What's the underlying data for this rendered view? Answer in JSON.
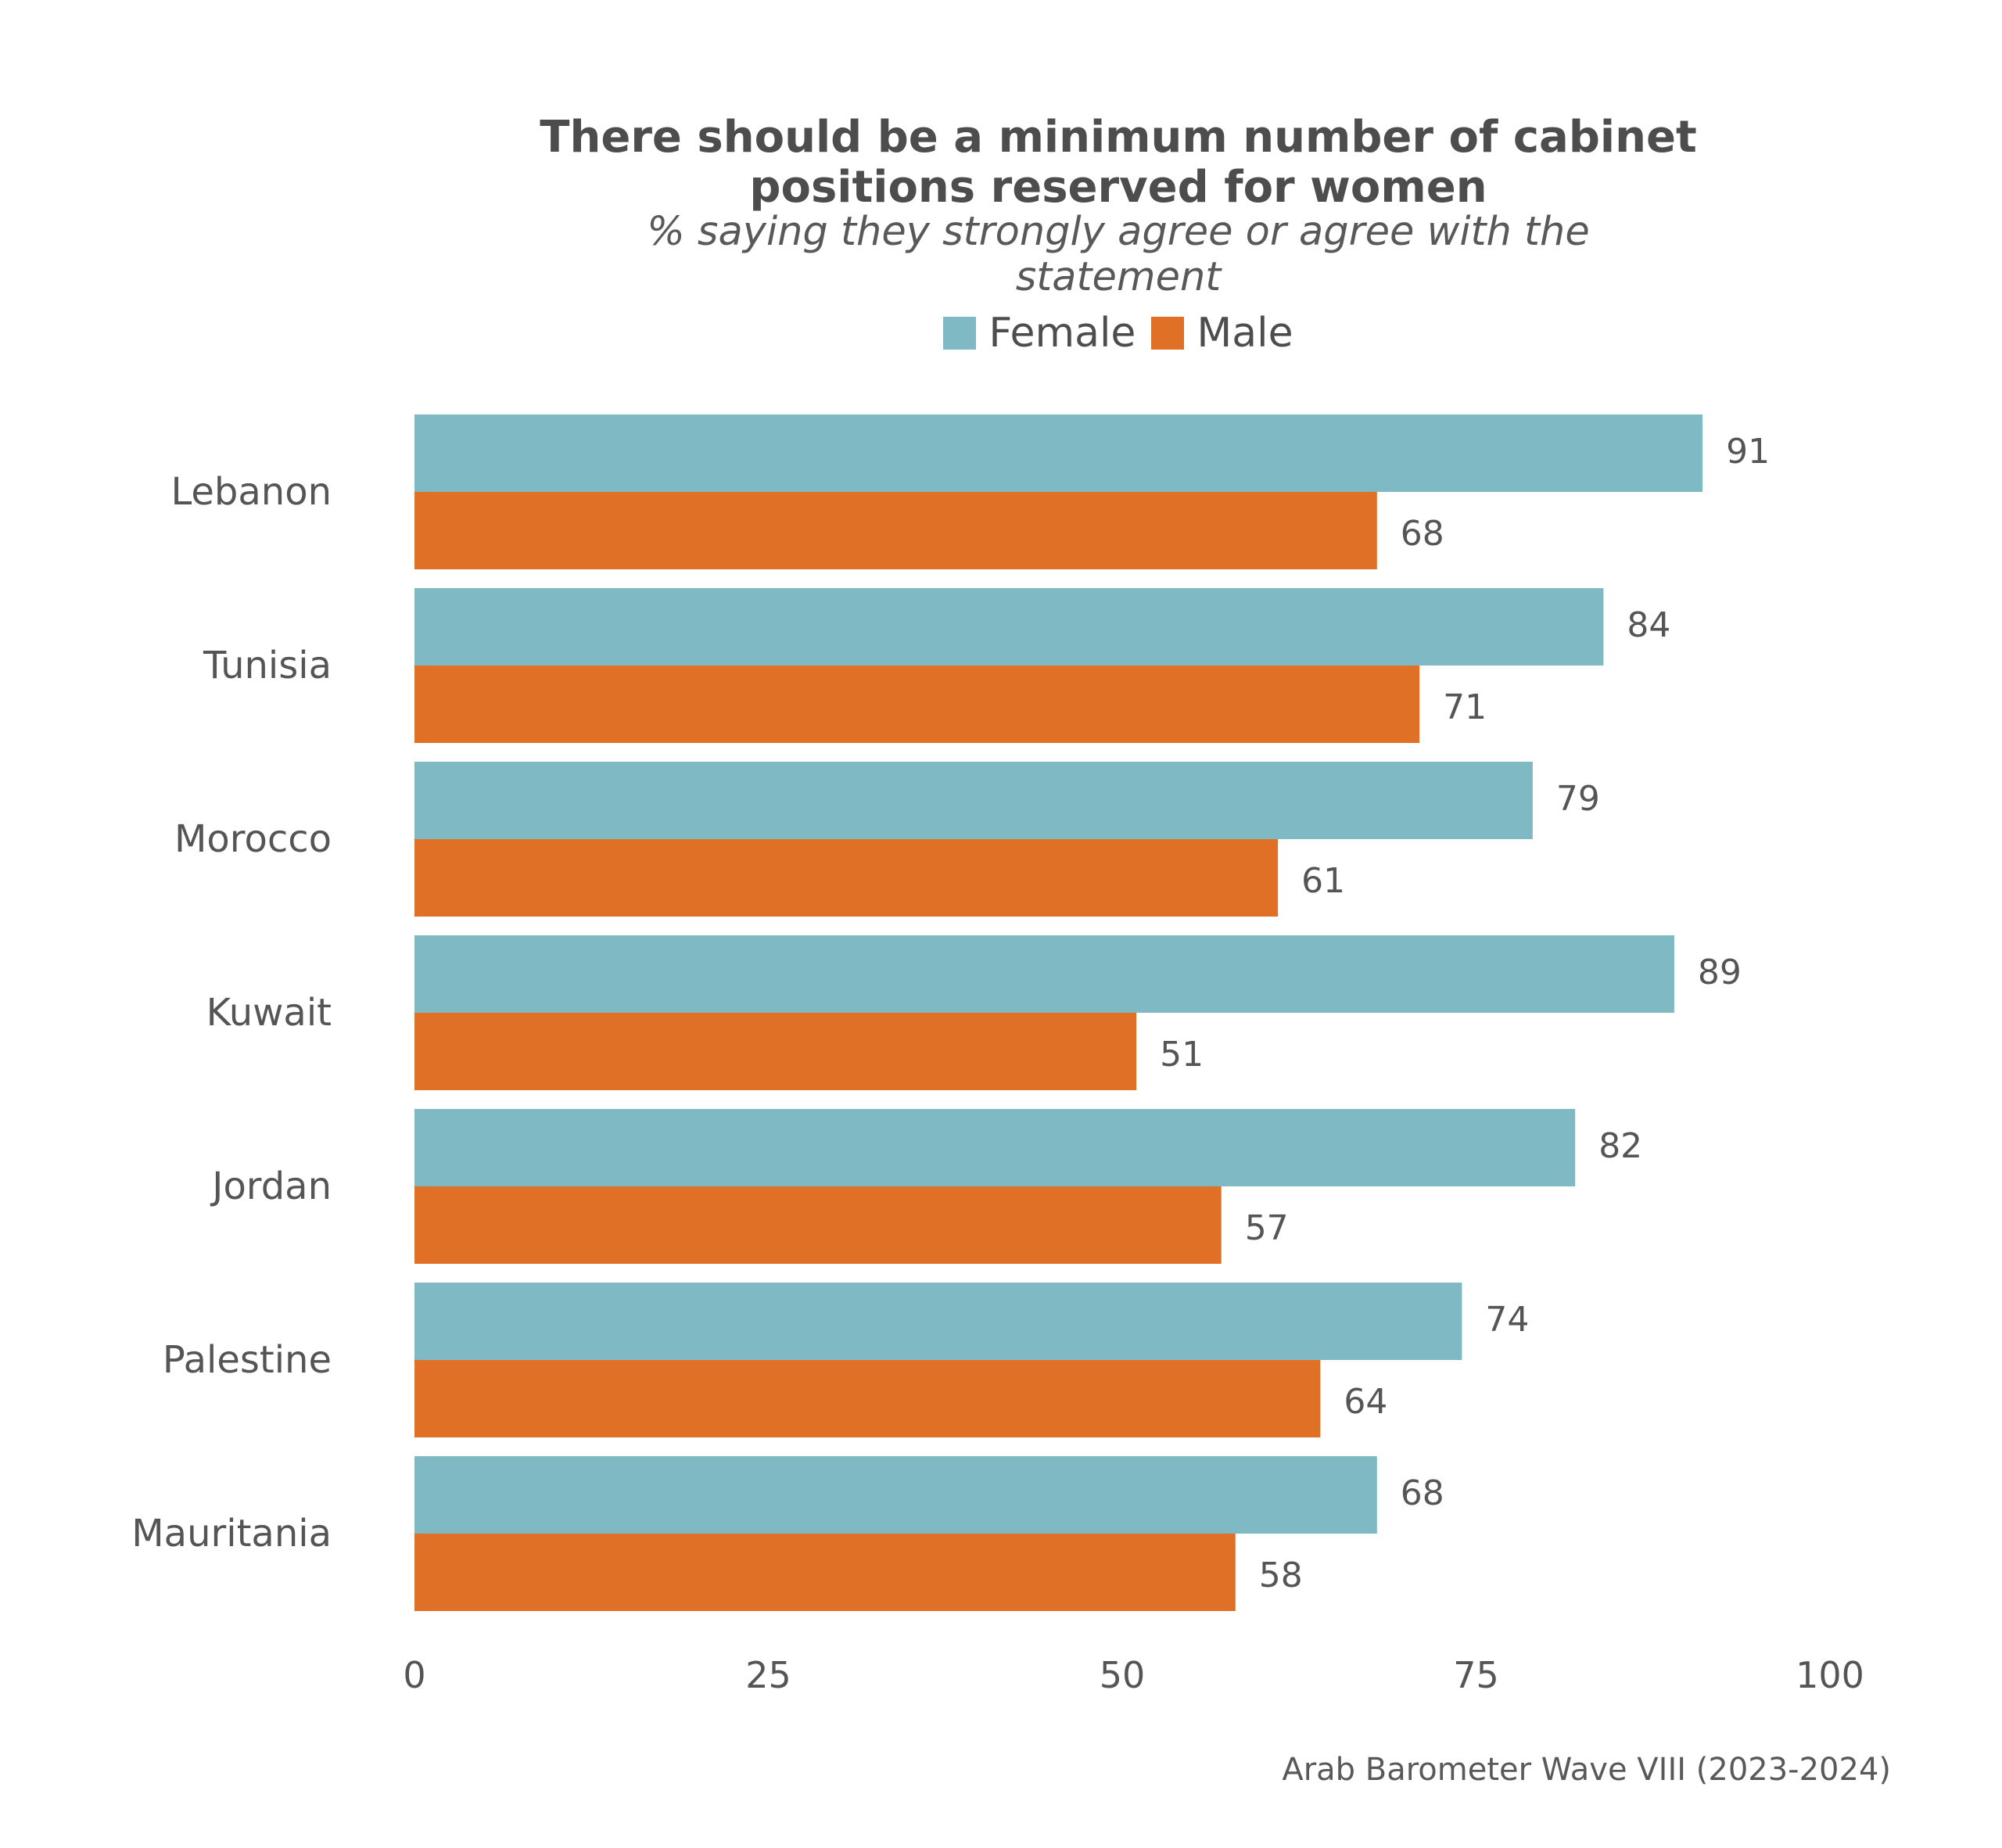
{
  "chart_data": {
    "type": "bar",
    "orientation": "horizontal",
    "title_lines": [
      "There should be a minimum number of cabinet",
      "positions reserved for women"
    ],
    "subtitle_lines": [
      "% saying they strongly agree or agree with the",
      "statement"
    ],
    "categories": [
      "Lebanon",
      "Tunisia",
      "Morocco",
      "Kuwait",
      "Jordan",
      "Palestine",
      "Mauritania"
    ],
    "series": [
      {
        "name": "Female",
        "color": "#7fbac4",
        "values": [
          91,
          84,
          79,
          89,
          82,
          74,
          68
        ]
      },
      {
        "name": "Male",
        "color": "#e07026",
        "values": [
          68,
          71,
          61,
          51,
          57,
          64,
          58
        ]
      }
    ],
    "xlim": [
      0,
      100
    ],
    "xticks": [
      "0",
      "25",
      "50",
      "75",
      "100"
    ],
    "xlabel": "",
    "ylabel": "",
    "grid": false,
    "legend_position": "top-center",
    "data_labels": true,
    "source": "Arab Barometer Wave VIII (2023-2024)"
  }
}
